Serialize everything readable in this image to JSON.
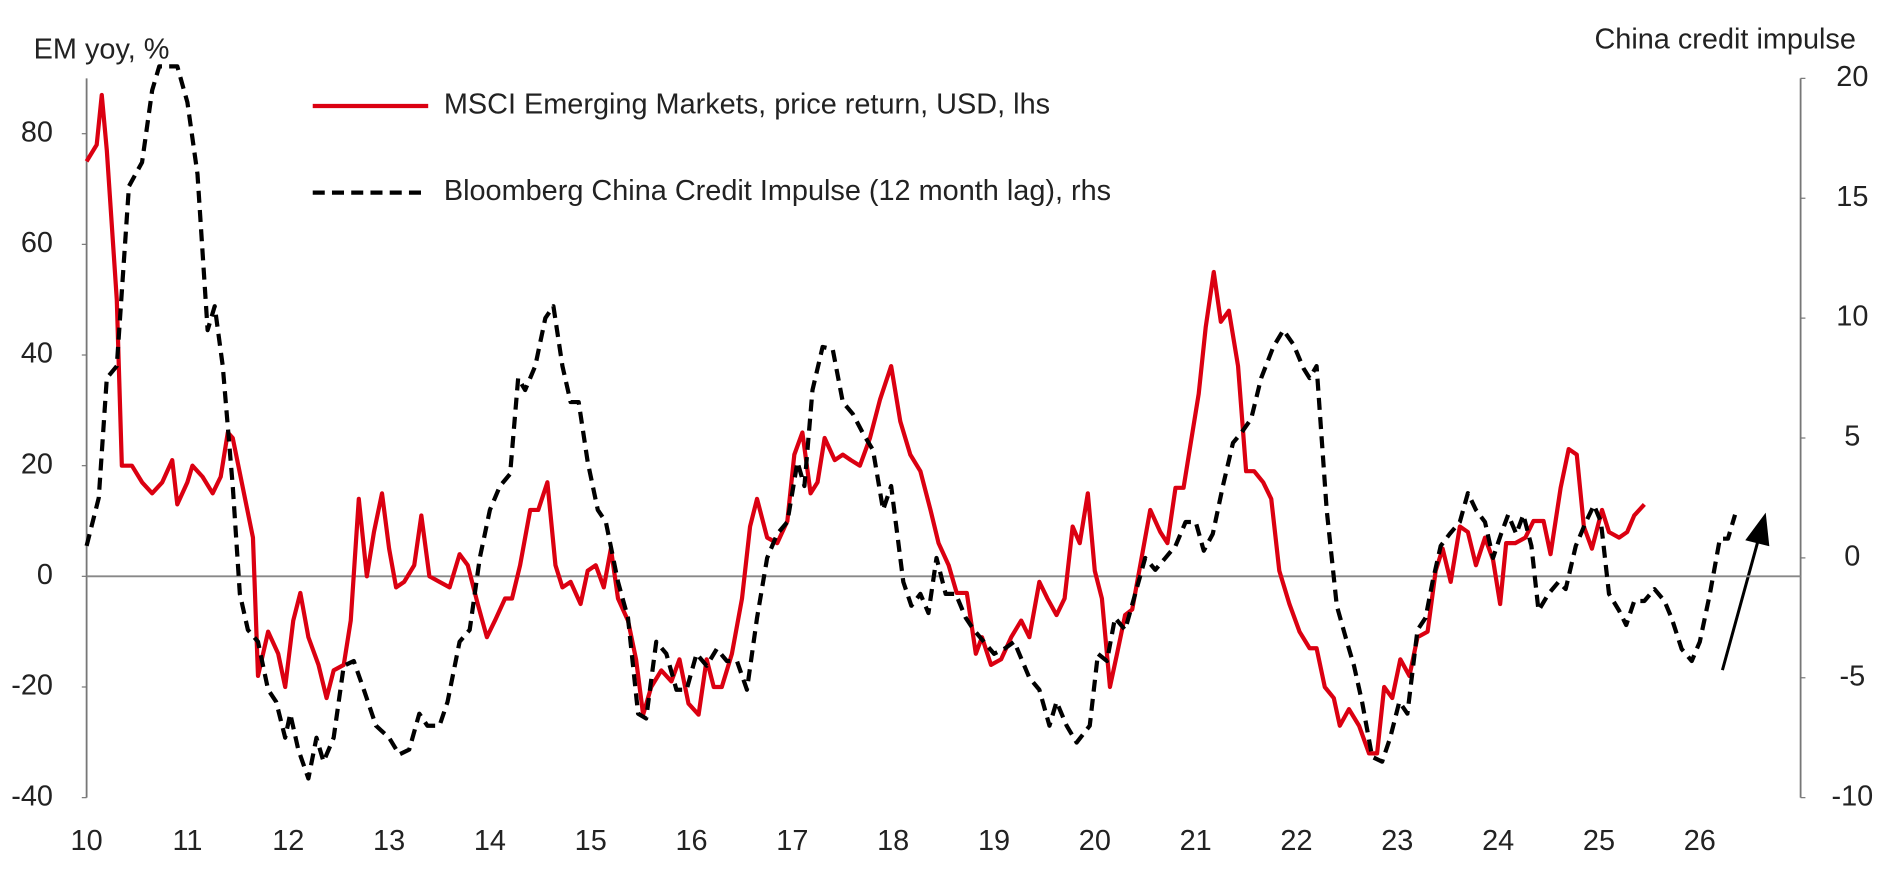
{
  "chart_data": {
    "type": "line",
    "y_label": "EM yoy, %",
    "y2_label": "China credit impulse",
    "xlim": [
      10,
      27
    ],
    "xticks": [
      10,
      11,
      12,
      13,
      14,
      15,
      16,
      17,
      18,
      19,
      20,
      21,
      22,
      23,
      24,
      25,
      26
    ],
    "ylim": [
      -40,
      90
    ],
    "yticks": [
      -40,
      -20,
      0,
      20,
      40,
      60,
      80
    ],
    "y2lim": [
      -10,
      20
    ],
    "y2ticks": [
      -10,
      -5,
      0,
      5,
      10,
      15,
      20
    ],
    "legend": "top",
    "series": [
      {
        "name": "MSCI Emerging Markets, price return, USD, lhs",
        "color": "#db0011",
        "dash": "solid",
        "x": [
          10.0,
          10.1,
          10.15,
          10.2,
          10.3,
          10.35,
          10.45,
          10.55,
          10.65,
          10.75,
          10.85,
          10.9,
          11.0,
          11.05,
          11.15,
          11.25,
          11.33,
          11.4,
          11.45,
          11.55,
          11.65,
          11.7,
          11.8,
          11.9,
          11.97,
          12.05,
          12.12,
          12.2,
          12.3,
          12.38,
          12.45,
          12.55,
          12.62,
          12.7,
          12.78,
          12.85,
          12.93,
          13.0,
          13.07,
          13.15,
          13.25,
          13.32,
          13.4,
          13.5,
          13.6,
          13.7,
          13.78,
          13.88,
          13.97,
          14.05,
          14.15,
          14.22,
          14.3,
          14.4,
          14.48,
          14.57,
          14.65,
          14.72,
          14.8,
          14.9,
          14.97,
          15.05,
          15.13,
          15.2,
          15.27,
          15.37,
          15.45,
          15.52,
          15.6,
          15.7,
          15.8,
          15.88,
          15.97,
          16.07,
          16.15,
          16.22,
          16.3,
          16.4,
          16.5,
          16.58,
          16.65,
          16.75,
          16.85,
          16.95,
          17.02,
          17.1,
          17.18,
          17.25,
          17.32,
          17.42,
          17.5,
          17.58,
          17.67,
          17.77,
          17.87,
          17.98,
          18.07,
          18.17,
          18.27,
          18.37,
          18.45,
          18.55,
          18.63,
          18.73,
          18.82,
          18.88,
          18.97,
          19.07,
          19.17,
          19.27,
          19.35,
          19.45,
          19.53,
          19.62,
          19.7,
          19.78,
          19.85,
          19.93,
          20.0,
          20.07,
          20.15,
          20.22,
          20.3,
          20.37,
          20.45,
          20.55,
          20.65,
          20.72,
          20.8,
          20.88,
          20.95,
          21.03,
          21.1,
          21.18,
          21.25,
          21.33,
          21.42,
          21.5,
          21.58,
          21.67,
          21.75,
          21.83,
          21.93,
          22.03,
          22.13,
          22.2,
          22.28,
          22.37,
          22.43,
          22.52,
          22.62,
          22.72,
          22.8,
          22.87,
          22.95,
          23.03,
          23.12,
          23.2,
          23.3,
          23.38,
          23.45,
          23.53,
          23.62,
          23.7,
          23.78,
          23.87,
          23.95,
          24.02,
          24.08,
          24.17,
          24.27,
          24.35,
          24.45,
          24.52,
          24.62,
          24.7,
          24.78,
          24.85,
          24.93,
          25.03,
          25.1,
          25.2,
          25.28,
          25.35,
          25.45
        ],
        "values": [
          75,
          78,
          87,
          77,
          50,
          20,
          20,
          17,
          15,
          17,
          21,
          13,
          17,
          20,
          18,
          15,
          18,
          26,
          25,
          16,
          7,
          -18,
          -10,
          -14,
          -20,
          -8,
          -3,
          -11,
          -16,
          -22,
          -17,
          -16,
          -8,
          14,
          0,
          8,
          15,
          5,
          -2,
          -1,
          2,
          11,
          0,
          -1,
          -2,
          4,
          2,
          -5,
          -11,
          -8,
          -4,
          -4,
          2,
          12,
          12,
          17,
          2,
          -2,
          -1,
          -5,
          1,
          2,
          -2,
          5,
          -4,
          -8,
          -15,
          -25,
          -20,
          -17,
          -19,
          -15,
          -23,
          -25,
          -15,
          -20,
          -20,
          -14,
          -4,
          9,
          14,
          7,
          6,
          10,
          22,
          26,
          15,
          17,
          25,
          21,
          22,
          21,
          20,
          25,
          32,
          38,
          28,
          22,
          19,
          12,
          6,
          2,
          -3,
          -3,
          -14,
          -11,
          -16,
          -15,
          -11,
          -8,
          -11,
          -1,
          -4,
          -7,
          -4,
          9,
          6,
          15,
          1,
          -4,
          -20,
          -14,
          -7,
          -6,
          2,
          12,
          8,
          6,
          16,
          16,
          24,
          33,
          45,
          55,
          46,
          48,
          38,
          19,
          19,
          17,
          14,
          1,
          -5,
          -10,
          -13,
          -13,
          -20,
          -22,
          -27,
          -24,
          -27,
          -32,
          -32,
          -20,
          -22,
          -15,
          -18,
          -11,
          -10,
          1,
          5,
          -1,
          9,
          8,
          2,
          7,
          3,
          -5,
          6,
          6,
          7,
          10,
          10,
          4,
          16,
          23,
          22,
          9,
          5,
          12,
          8,
          7,
          8,
          11,
          13
        ]
      },
      {
        "name": "Bloomberg China Credit Impulse (12 month lag), rhs",
        "color": "#000000",
        "dash": "dashed",
        "axis": "y2",
        "x": [
          10.0,
          10.12,
          10.2,
          10.3,
          10.42,
          10.55,
          10.65,
          10.72,
          10.9,
          11.0,
          11.1,
          11.2,
          11.27,
          11.35,
          11.45,
          11.52,
          11.6,
          11.7,
          11.8,
          11.88,
          11.97,
          12.02,
          12.1,
          12.2,
          12.28,
          12.35,
          12.45,
          12.55,
          12.65,
          12.75,
          12.87,
          13.0,
          13.1,
          13.2,
          13.3,
          13.38,
          13.5,
          13.58,
          13.7,
          13.8,
          13.9,
          14.0,
          14.1,
          14.2,
          14.28,
          14.35,
          14.45,
          14.55,
          14.63,
          14.72,
          14.8,
          14.88,
          14.97,
          15.07,
          15.15,
          15.27,
          15.37,
          15.47,
          15.55,
          15.65,
          15.75,
          15.85,
          15.95,
          16.05,
          16.15,
          16.25,
          16.35,
          16.45,
          16.55,
          16.65,
          16.75,
          16.85,
          16.95,
          17.05,
          17.12,
          17.2,
          17.3,
          17.4,
          17.5,
          17.6,
          17.7,
          17.8,
          17.9,
          17.98,
          18.1,
          18.18,
          18.27,
          18.35,
          18.43,
          18.52,
          18.62,
          18.72,
          18.8,
          18.9,
          19.0,
          19.1,
          19.2,
          19.35,
          19.45,
          19.55,
          19.62,
          19.72,
          19.82,
          19.95,
          20.03,
          20.12,
          20.2,
          20.3,
          20.4,
          20.5,
          20.6,
          20.7,
          20.8,
          20.9,
          21.0,
          21.08,
          21.17,
          21.27,
          21.37,
          21.45,
          21.55,
          21.65,
          21.77,
          21.87,
          21.97,
          22.07,
          22.13,
          22.2,
          22.3,
          22.4,
          22.5,
          22.57,
          22.65,
          22.75,
          22.85,
          22.93,
          23.02,
          23.1,
          23.2,
          23.28,
          23.35,
          23.43,
          23.52,
          23.62,
          23.7,
          23.78,
          23.87,
          23.95,
          24.03,
          24.1,
          24.18,
          24.25,
          24.33,
          24.4,
          24.5,
          24.6,
          24.67,
          24.77,
          24.87,
          24.95,
          25.02,
          25.1,
          25.2,
          25.27,
          25.35,
          25.45,
          25.55,
          25.65,
          25.72,
          25.82,
          25.92,
          26.0,
          26.1,
          26.2,
          26.28,
          26.35
        ],
        "values": [
          0.5,
          2.5,
          7.5,
          8,
          15.5,
          16.5,
          19.5,
          20.5,
          20.5,
          19,
          16,
          9.5,
          10.5,
          8,
          3,
          -1.5,
          -3,
          -3.5,
          -5.5,
          -6,
          -7.5,
          -6.5,
          -8,
          -9.2,
          -7.5,
          -8.5,
          -7.5,
          -4.5,
          -4.3,
          -5.5,
          -7,
          -7.5,
          -8.2,
          -8,
          -6.5,
          -7,
          -7,
          -6,
          -3.5,
          -3,
          0,
          2,
          3,
          3.5,
          7.5,
          7,
          8,
          10,
          10.5,
          8,
          6.5,
          6.5,
          4,
          2,
          1.5,
          -1,
          -2.5,
          -6.5,
          -6.7,
          -3.5,
          -4,
          -5.5,
          -5.5,
          -4,
          -4.5,
          -3.8,
          -4.3,
          -4.3,
          -5.5,
          -2.5,
          0,
          1,
          1.5,
          4,
          3,
          7,
          8.8,
          8.7,
          6.5,
          6,
          5.2,
          4.5,
          2,
          3,
          -1,
          -2,
          -1.5,
          -2.3,
          0,
          -1.5,
          -1.5,
          -2.5,
          -3,
          -3.5,
          -4,
          -3.8,
          -3.5,
          -5,
          -5.5,
          -7,
          -6,
          -7,
          -7.7,
          -7,
          -4,
          -4.3,
          -2.5,
          -3,
          -1.5,
          0,
          -0.5,
          0,
          0.5,
          1.5,
          1.5,
          0.3,
          1,
          3,
          4.8,
          5.2,
          5.8,
          7.5,
          8.8,
          9.5,
          8.9,
          7.9,
          7.5,
          8,
          2,
          -2,
          -3.5,
          -4.5,
          -6,
          -8.3,
          -8.5,
          -7.5,
          -6,
          -6.5,
          -3,
          -2.5,
          -1,
          0.5,
          1,
          1.5,
          2.7,
          2,
          1.5,
          0,
          1,
          1.8,
          1,
          1.8,
          0.5,
          -2.2,
          -1.5,
          -1,
          -1.3,
          0.5,
          1.5,
          2.2,
          1.5,
          -1.5,
          -2.2,
          -2.8,
          -1.8,
          -1.8,
          -1.3,
          -1.8,
          -2.5,
          -3.8,
          -4.3,
          -3.5,
          -1.5,
          0.8,
          0.8,
          1.8
        ]
      }
    ]
  }
}
